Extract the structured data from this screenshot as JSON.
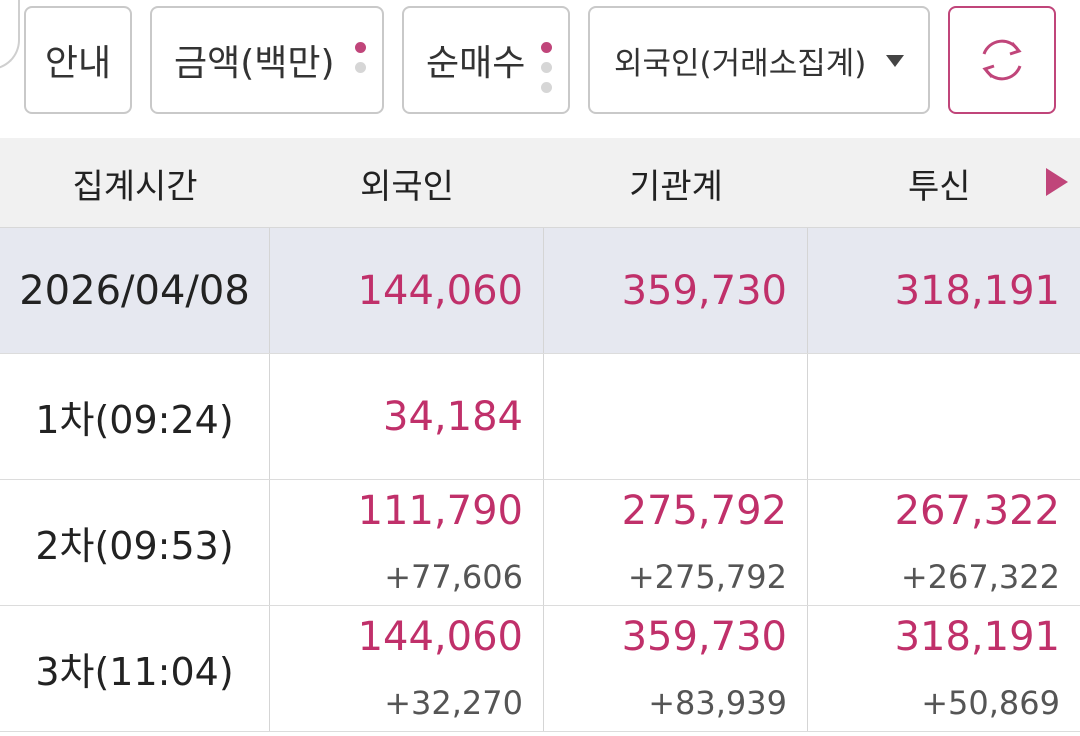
{
  "toolbar": {
    "guide_label": "안내",
    "amount_label": "금액(백만)",
    "net_label": "순매수",
    "investor_select": "외국인(거래소집계)",
    "refresh_icon": "refresh-icon"
  },
  "table": {
    "columns": [
      "집계시간",
      "외국인",
      "기관계",
      "투신"
    ],
    "rows": [
      {
        "time": "2026/04/08",
        "foreign": "144,060",
        "foreign_delta": "",
        "inst": "359,730",
        "inst_delta": "",
        "trust": "318,191",
        "trust_delta": ""
      },
      {
        "time": "1차(09:24)",
        "foreign": "34,184",
        "foreign_delta": "",
        "inst": "",
        "inst_delta": "",
        "trust": "",
        "trust_delta": ""
      },
      {
        "time": "2차(09:53)",
        "foreign": "111,790",
        "foreign_delta": "+77,606",
        "inst": "275,792",
        "inst_delta": "+275,792",
        "trust": "267,322",
        "trust_delta": "+267,322"
      },
      {
        "time": "3차(11:04)",
        "foreign": "144,060",
        "foreign_delta": "+32,270",
        "inst": "359,730",
        "inst_delta": "+83,939",
        "trust": "318,191",
        "trust_delta": "+50,869"
      }
    ]
  },
  "colors": {
    "accent": "#c0306a",
    "header_bg": "#f1f1f1",
    "total_row_bg": "#e6e8f0"
  }
}
